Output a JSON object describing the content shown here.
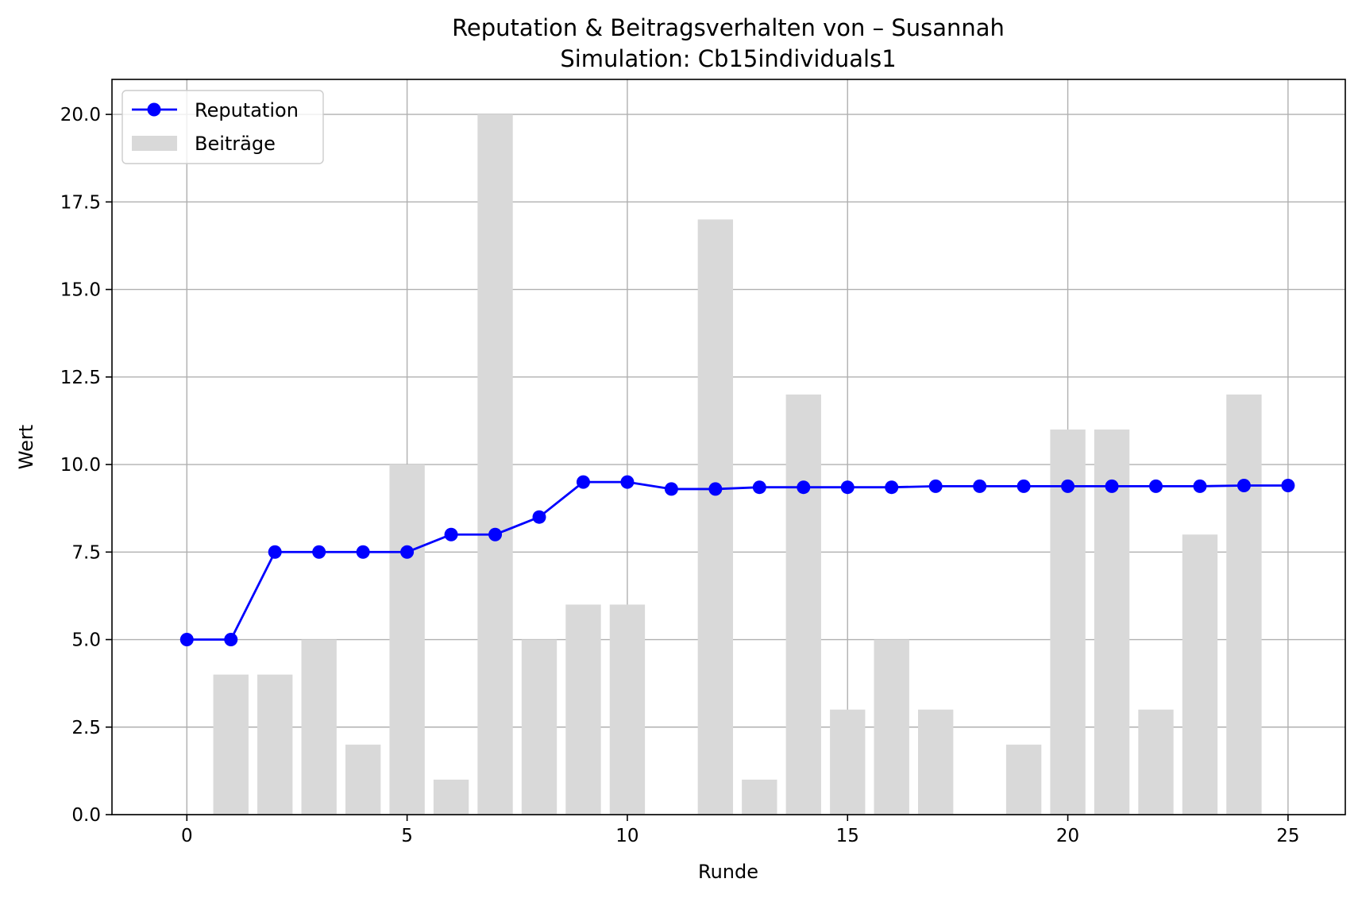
{
  "chart_data": {
    "type": "bar",
    "title": "Reputation & Beitragsverhalten von – Susannah",
    "subtitle": "Simulation: Cb15individuals1",
    "xlabel": "Runde",
    "ylabel": "Wert",
    "xlim": [
      -1.7,
      26.3
    ],
    "ylim": [
      0,
      21
    ],
    "xticks": [
      0,
      5,
      10,
      15,
      20,
      25
    ],
    "xtick_labels": [
      "0",
      "5",
      "10",
      "15",
      "20",
      "25"
    ],
    "yticks": [
      0,
      2.5,
      5,
      7.5,
      10,
      12.5,
      15,
      17.5,
      20
    ],
    "ytick_labels": [
      "0.0",
      "2.5",
      "5.0",
      "7.5",
      "10.0",
      "12.5",
      "15.0",
      "17.5",
      "20.0"
    ],
    "grid": true,
    "legend_position": "top-left",
    "x": [
      0,
      1,
      2,
      3,
      4,
      5,
      6,
      7,
      8,
      9,
      10,
      11,
      12,
      13,
      14,
      15,
      16,
      17,
      18,
      19,
      20,
      21,
      22,
      23,
      24,
      25
    ],
    "series": [
      {
        "name": "Reputation",
        "kind": "line",
        "color": "#0000ff",
        "values": [
          5.0,
          5.0,
          7.5,
          7.5,
          7.5,
          7.5,
          8.0,
          8.0,
          8.5,
          9.5,
          9.5,
          9.3,
          9.3,
          9.35,
          9.35,
          9.35,
          9.35,
          9.38,
          9.38,
          9.38,
          9.38,
          9.38,
          9.38,
          9.38,
          9.4,
          9.4
        ]
      },
      {
        "name": "Beiträge",
        "kind": "bar",
        "color": "#d9d9d9",
        "values": [
          0,
          4,
          4,
          5,
          2,
          10,
          1,
          20,
          5,
          6,
          6,
          0,
          17,
          1,
          12,
          3,
          5,
          3,
          0,
          2,
          11,
          11,
          3,
          8,
          12,
          0
        ]
      }
    ]
  }
}
